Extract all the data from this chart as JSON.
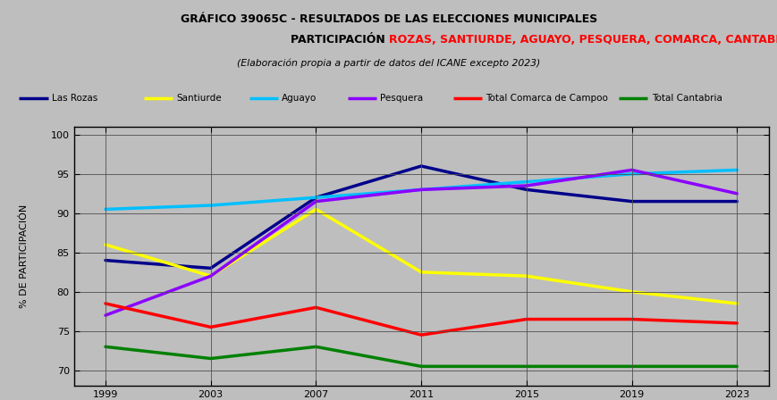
{
  "title_line1": "GRÁFICO 39065C - RESULTADOS DE LAS ELECCIONES MUNICIPALES",
  "title_line2_black": "PARTICIPACIÓN ",
  "title_line2_red": "ROZAS, SANTIURDE, AGUAYO, PESQUERA, COMARCA, CANTABRIA",
  "title_line3": "(Elaboración propia a partir de datos del ICANE excepto 2023)",
  "x_labels": [
    "1999",
    "2003",
    "2007",
    "2011",
    "2015",
    "2019",
    "2023"
  ],
  "ylabel": "% DE PARTICIPACIÓN",
  "ylim": [
    68,
    101
  ],
  "yticks": [
    70,
    75,
    80,
    85,
    90,
    95,
    100
  ],
  "series": {
    "Las Rozas": {
      "color": "#00008B",
      "linewidth": 2.5,
      "values": [
        84.0,
        83.0,
        92.0,
        96.0,
        93.0,
        91.5,
        91.5
      ]
    },
    "Santiurde": {
      "color": "#FFFF00",
      "linewidth": 2.5,
      "values": [
        86.0,
        82.0,
        90.5,
        82.5,
        82.0,
        80.0,
        78.5
      ]
    },
    "Aguayo": {
      "color": "#00BFFF",
      "linewidth": 2.5,
      "values": [
        90.5,
        91.0,
        92.0,
        93.0,
        94.0,
        95.0,
        95.5
      ]
    },
    "Pesquera": {
      "color": "#8B00FF",
      "linewidth": 2.5,
      "values": [
        77.0,
        82.0,
        91.5,
        93.0,
        93.5,
        95.5,
        92.5
      ]
    },
    "Total Comarca de Campoo": {
      "color": "#FF0000",
      "linewidth": 2.5,
      "values": [
        78.5,
        75.5,
        78.0,
        74.5,
        76.5,
        76.5,
        76.0
      ]
    },
    "Total Cantabria": {
      "color": "#008000",
      "linewidth": 2.5,
      "values": [
        73.0,
        71.5,
        73.0,
        70.5,
        70.5,
        70.5,
        70.5
      ]
    }
  },
  "bg_color": "#BEBEBE",
  "plot_bg_color": "#BEBEBE",
  "legend_items_order": [
    "Las Rozas",
    "Santiurde",
    "Aguayo",
    "Pesquera",
    "Total Comarca de Campoo",
    "Total Cantabria"
  ],
  "legend_starts": [
    0.01,
    0.175,
    0.315,
    0.445,
    0.585,
    0.805
  ]
}
